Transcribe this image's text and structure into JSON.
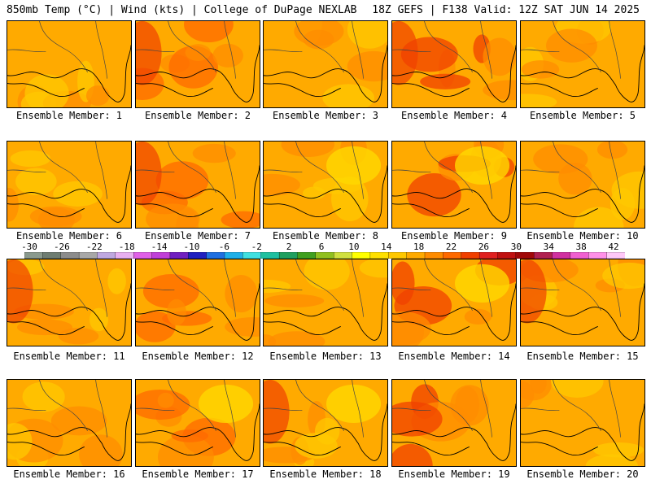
{
  "header": {
    "title_left": "850mb Temp (°C) | Wind (kts) | College of DuPage NEXLAB",
    "title_right": "18Z GEFS | F138 Valid: 12Z SAT JUN 14 2025"
  },
  "colorbar": {
    "labels": [
      "-30",
      "-26",
      "-22",
      "-18",
      "-14",
      "-10",
      "-6",
      "-2",
      "2",
      "6",
      "10",
      "14",
      "18",
      "22",
      "26",
      "30",
      "34",
      "38",
      "42"
    ],
    "colors": [
      "#8A9A8E",
      "#6E7D72",
      "#8C8C8C",
      "#A8A8A8",
      "#BFA8E0",
      "#E8B0F0",
      "#E060E8",
      "#C040D8",
      "#7020C0",
      "#2020C0",
      "#2070E0",
      "#20B0E8",
      "#40E0E0",
      "#20C0A0",
      "#20A060",
      "#40A020",
      "#90C020",
      "#D0E040",
      "#FFFF00",
      "#FFE000",
      "#FFC800",
      "#FFAA00",
      "#FF8C00",
      "#FF6A00",
      "#F04000",
      "#E02020",
      "#C01010",
      "#A00808",
      "#B02050",
      "#D030A0",
      "#F060D0",
      "#FF90E8",
      "#FFC8F8"
    ]
  },
  "panels": [
    {
      "label": "Ensemble Member: 1"
    },
    {
      "label": "Ensemble Member: 2"
    },
    {
      "label": "Ensemble Member: 3"
    },
    {
      "label": "Ensemble Member: 4"
    },
    {
      "label": "Ensemble Member: 5"
    },
    {
      "label": "Ensemble Member: 6"
    },
    {
      "label": "Ensemble Member: 7"
    },
    {
      "label": "Ensemble Member: 8"
    },
    {
      "label": "Ensemble Member: 9"
    },
    {
      "label": "Ensemble Member: 10"
    },
    {
      "label": "Ensemble Member: 11"
    },
    {
      "label": "Ensemble Member: 12"
    },
    {
      "label": "Ensemble Member: 13"
    },
    {
      "label": "Ensemble Member: 14"
    },
    {
      "label": "Ensemble Member: 15"
    },
    {
      "label": "Ensemble Member: 16"
    },
    {
      "label": "Ensemble Member: 17"
    },
    {
      "label": "Ensemble Member: 18"
    },
    {
      "label": "Ensemble Member: 19"
    },
    {
      "label": "Ensemble Member: 20"
    }
  ]
}
